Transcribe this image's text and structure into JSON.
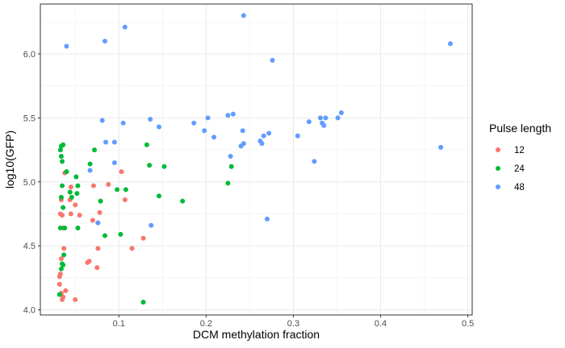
{
  "chart_data": {
    "type": "scatter",
    "title": "",
    "xlabel": "DCM methylation fraction",
    "ylabel": "log10(GFP)",
    "xlim": [
      0.01,
      0.505
    ],
    "ylim": [
      3.96,
      6.39
    ],
    "x_ticks": [
      0.1,
      0.2,
      0.3,
      0.4,
      0.5
    ],
    "x_tick_labels": [
      "0.1",
      "0.2",
      "0.3",
      "0.4",
      "0.5"
    ],
    "y_ticks": [
      4.0,
      4.5,
      5.0,
      5.5,
      6.0
    ],
    "y_tick_labels": [
      "4.0",
      "4.5",
      "5.0",
      "5.5",
      "6.0"
    ],
    "grid": true,
    "legend": {
      "title": "Pulse length",
      "position": "right"
    },
    "series": [
      {
        "name": "12",
        "color": "#F8766D",
        "points": [
          [
            0.035,
            4.08
          ],
          [
            0.036,
            4.1
          ],
          [
            0.034,
            4.13
          ],
          [
            0.039,
            4.15
          ],
          [
            0.05,
            4.08
          ],
          [
            0.032,
            4.2
          ],
          [
            0.032,
            4.26
          ],
          [
            0.033,
            4.28
          ],
          [
            0.034,
            4.4
          ],
          [
            0.037,
            4.48
          ],
          [
            0.036,
            4.64
          ],
          [
            0.033,
            4.75
          ],
          [
            0.035,
            4.74
          ],
          [
            0.045,
            4.75
          ],
          [
            0.055,
            4.74
          ],
          [
            0.034,
            4.86
          ],
          [
            0.044,
            4.86
          ],
          [
            0.05,
            4.82
          ],
          [
            0.07,
            4.7
          ],
          [
            0.076,
            4.68
          ],
          [
            0.078,
            4.76
          ],
          [
            0.079,
            4.85
          ],
          [
            0.088,
            4.98
          ],
          [
            0.071,
            4.97
          ],
          [
            0.038,
            5.07
          ],
          [
            0.045,
            4.96
          ],
          [
            0.103,
            5.08
          ],
          [
            0.107,
            4.86
          ],
          [
            0.115,
            4.48
          ],
          [
            0.128,
            4.56
          ],
          [
            0.064,
            4.37
          ],
          [
            0.066,
            4.38
          ],
          [
            0.076,
            4.48
          ],
          [
            0.075,
            4.33
          ]
        ]
      },
      {
        "name": "24",
        "color": "#00BA38",
        "points": [
          [
            0.032,
            4.12
          ],
          [
            0.034,
            4.32
          ],
          [
            0.035,
            4.36
          ],
          [
            0.036,
            4.35
          ],
          [
            0.037,
            4.43
          ],
          [
            0.033,
            4.64
          ],
          [
            0.038,
            4.64
          ],
          [
            0.053,
            4.64
          ],
          [
            0.036,
            4.8
          ],
          [
            0.034,
            4.88
          ],
          [
            0.035,
            4.97
          ],
          [
            0.044,
            4.92
          ],
          [
            0.046,
            4.88
          ],
          [
            0.052,
            4.91
          ],
          [
            0.053,
            4.97
          ],
          [
            0.051,
            5.04
          ],
          [
            0.04,
            5.08
          ],
          [
            0.035,
            5.16
          ],
          [
            0.034,
            5.2
          ],
          [
            0.034,
            5.28
          ],
          [
            0.036,
            5.29
          ],
          [
            0.033,
            5.25
          ],
          [
            0.067,
            5.14
          ],
          [
            0.072,
            5.25
          ],
          [
            0.079,
            4.85
          ],
          [
            0.084,
            4.58
          ],
          [
            0.098,
            4.94
          ],
          [
            0.102,
            4.59
          ],
          [
            0.108,
            4.94
          ],
          [
            0.128,
            4.06
          ],
          [
            0.132,
            5.29
          ],
          [
            0.135,
            5.13
          ],
          [
            0.146,
            4.89
          ],
          [
            0.152,
            5.12
          ],
          [
            0.173,
            4.85
          ],
          [
            0.225,
            4.99
          ],
          [
            0.229,
            5.12
          ]
        ]
      },
      {
        "name": "48",
        "color": "#619CFF",
        "points": [
          [
            0.04,
            6.06
          ],
          [
            0.084,
            6.1
          ],
          [
            0.107,
            6.21
          ],
          [
            0.243,
            6.3
          ],
          [
            0.276,
            5.95
          ],
          [
            0.48,
            6.08
          ],
          [
            0.081,
            5.48
          ],
          [
            0.105,
            5.46
          ],
          [
            0.136,
            5.49
          ],
          [
            0.146,
            5.43
          ],
          [
            0.085,
            5.31
          ],
          [
            0.095,
            5.31
          ],
          [
            0.186,
            5.46
          ],
          [
            0.198,
            5.4
          ],
          [
            0.202,
            5.5
          ],
          [
            0.209,
            5.35
          ],
          [
            0.225,
            5.52
          ],
          [
            0.231,
            5.53
          ],
          [
            0.242,
            5.4
          ],
          [
            0.24,
            5.28
          ],
          [
            0.243,
            5.3
          ],
          [
            0.228,
            5.2
          ],
          [
            0.262,
            5.32
          ],
          [
            0.264,
            5.3
          ],
          [
            0.266,
            5.36
          ],
          [
            0.272,
            5.38
          ],
          [
            0.27,
            4.71
          ],
          [
            0.305,
            5.36
          ],
          [
            0.318,
            5.47
          ],
          [
            0.324,
            5.16
          ],
          [
            0.331,
            5.5
          ],
          [
            0.333,
            5.46
          ],
          [
            0.335,
            5.44
          ],
          [
            0.337,
            5.5
          ],
          [
            0.351,
            5.5
          ],
          [
            0.355,
            5.54
          ],
          [
            0.469,
            5.27
          ],
          [
            0.067,
            5.09
          ],
          [
            0.076,
            4.68
          ],
          [
            0.095,
            5.15
          ],
          [
            0.137,
            4.66
          ]
        ]
      }
    ]
  }
}
